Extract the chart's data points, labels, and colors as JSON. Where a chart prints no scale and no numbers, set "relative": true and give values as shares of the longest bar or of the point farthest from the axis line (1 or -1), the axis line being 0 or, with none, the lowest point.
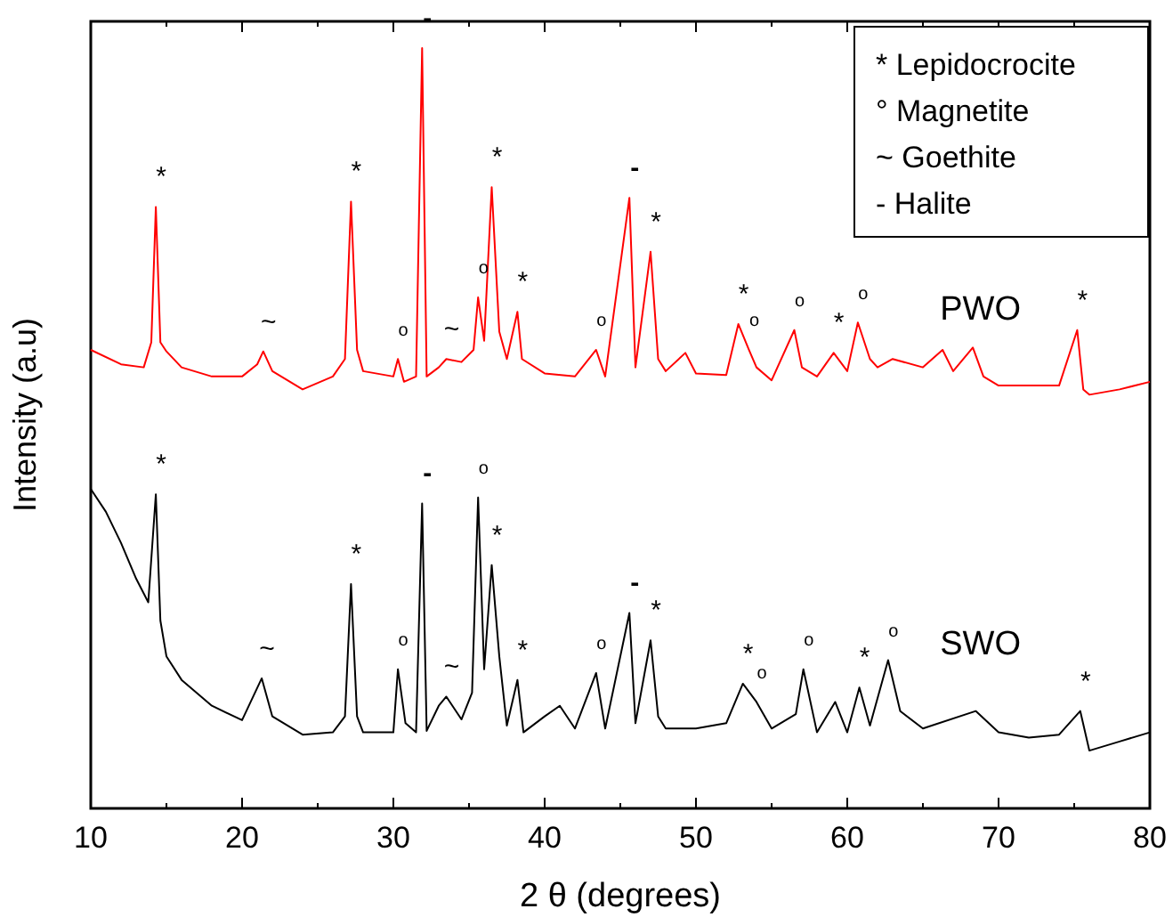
{
  "chart_data": {
    "type": "line",
    "relative": true,
    "xlabel": "2 θ (degrees)",
    "ylabel": "Intensity (a.u)",
    "xlim": [
      10,
      80
    ],
    "xticks": [
      10,
      {
        "value": 15,
        "label": null
      },
      20,
      {
        "value": 25,
        "label": null
      },
      30,
      {
        "value": 35,
        "label": null
      },
      40,
      {
        "value": 45,
        "label": null
      },
      50,
      {
        "value": 55,
        "label": null
      },
      60,
      {
        "value": 65,
        "label": null
      },
      70,
      {
        "value": 75,
        "label": null
      },
      80
    ],
    "grid": false,
    "series": [
      {
        "name": "PWO",
        "color": "#ff0000",
        "x": [
          10,
          12,
          13.5,
          14,
          14.3,
          14.6,
          15,
          16,
          18,
          20,
          21,
          21.4,
          22,
          24,
          26,
          26.8,
          27.2,
          27.6,
          28,
          30,
          30.3,
          30.7,
          31.5,
          31.9,
          32.2,
          33,
          33.5,
          34.5,
          35.3,
          35.6,
          36,
          36.5,
          37,
          37.5,
          38.2,
          38.5,
          40,
          42,
          43.4,
          44,
          45.6,
          46,
          47,
          47.5,
          48,
          49.3,
          50,
          52,
          52.8,
          53.5,
          54,
          55,
          56.5,
          57,
          58,
          59.1,
          60,
          60.7,
          61.5,
          62,
          63,
          65,
          66.3,
          67,
          68.3,
          69,
          70,
          72,
          74,
          75.2,
          75.6,
          76,
          78,
          80
        ],
        "values": [
          0.603,
          0.584,
          0.58,
          0.613,
          0.791,
          0.613,
          0.601,
          0.58,
          0.568,
          0.568,
          0.584,
          0.601,
          0.575,
          0.551,
          0.568,
          0.591,
          0.798,
          0.603,
          0.575,
          0.568,
          0.591,
          0.561,
          0.568,
          1.0,
          0.568,
          0.58,
          0.591,
          0.587,
          0.603,
          0.672,
          0.615,
          0.817,
          0.627,
          0.591,
          0.653,
          0.591,
          0.572,
          0.568,
          0.603,
          0.568,
          0.803,
          0.58,
          0.732,
          0.591,
          0.575,
          0.599,
          0.572,
          0.57,
          0.637,
          0.603,
          0.58,
          0.563,
          0.629,
          0.58,
          0.568,
          0.599,
          0.575,
          0.639,
          0.591,
          0.58,
          0.591,
          0.58,
          0.603,
          0.575,
          0.606,
          0.568,
          0.556,
          0.556,
          0.556,
          0.629,
          0.551,
          0.544,
          0.551,
          0.561
        ]
      },
      {
        "name": "SWO",
        "color": "#000000",
        "x": [
          10,
          11,
          12,
          13,
          13.8,
          14.3,
          14.6,
          15,
          16,
          18,
          20,
          21.3,
          22,
          24,
          26,
          26.8,
          27.2,
          27.6,
          28,
          30,
          30.3,
          30.8,
          31.5,
          31.9,
          32.2,
          33,
          33.5,
          34.5,
          35.2,
          35.6,
          36,
          36.5,
          37,
          37.5,
          38.2,
          38.6,
          40,
          41,
          42,
          43.4,
          44,
          45.6,
          46,
          47,
          47.5,
          48,
          50,
          52,
          53.1,
          54,
          55,
          56.6,
          57.1,
          58,
          59.2,
          60,
          60.8,
          61.5,
          62.7,
          63.5,
          65,
          68.5,
          70,
          72,
          74,
          75.4,
          76,
          78,
          80
        ],
        "values": [
          0.42,
          0.39,
          0.349,
          0.302,
          0.271,
          0.413,
          0.247,
          0.2,
          0.169,
          0.135,
          0.116,
          0.171,
          0.121,
          0.097,
          0.1,
          0.121,
          0.295,
          0.121,
          0.1,
          0.1,
          0.183,
          0.112,
          0.1,
          0.401,
          0.102,
          0.135,
          0.147,
          0.117,
          0.152,
          0.409,
          0.183,
          0.32,
          0.2,
          0.109,
          0.169,
          0.1,
          0.121,
          0.135,
          0.105,
          0.178,
          0.105,
          0.257,
          0.112,
          0.221,
          0.121,
          0.105,
          0.105,
          0.112,
          0.164,
          0.14,
          0.105,
          0.124,
          0.183,
          0.1,
          0.14,
          0.1,
          0.159,
          0.109,
          0.195,
          0.128,
          0.105,
          0.128,
          0.1,
          0.093,
          0.097,
          0.128,
          0.076,
          0.088,
          0.1
        ]
      }
    ],
    "annotations": [
      "* Lepidocrocite",
      "° Magnetite",
      "~ Goethite",
      "- Halite",
      {
        "text": "*",
        "x": 14.3,
        "y": 0.791
      },
      {
        "text": "~",
        "x": 21.4,
        "y": 0.601
      },
      {
        "text": "*",
        "x": 27.2,
        "y": 0.798
      },
      {
        "text": "o",
        "x": 30.3,
        "y": 0.591
      },
      {
        "text": "-",
        "x": 31.9,
        "y": 1.0
      },
      {
        "text": "~",
        "x": 33.5,
        "y": 0.591
      },
      {
        "text": "o",
        "x": 35.6,
        "y": 0.672
      },
      {
        "text": "*",
        "x": 36.5,
        "y": 0.817
      },
      {
        "text": "*",
        "x": 38.2,
        "y": 0.653
      },
      {
        "text": "o",
        "x": 43.4,
        "y": 0.603
      },
      {
        "text": "-",
        "x": 45.6,
        "y": 0.803
      },
      {
        "text": "*",
        "x": 47,
        "y": 0.732
      },
      {
        "text": "*",
        "x": 52.8,
        "y": 0.637
      },
      {
        "text": "o",
        "x": 53.5,
        "y": 0.603
      },
      {
        "text": "o",
        "x": 56.5,
        "y": 0.629
      },
      {
        "text": "*",
        "x": 59.1,
        "y": 0.599
      },
      {
        "text": "o",
        "x": 60.7,
        "y": 0.639
      },
      {
        "text": "*",
        "x": 75.2,
        "y": 0.629
      },
      {
        "text": "*",
        "x": 14.3,
        "y": 0.413
      },
      {
        "text": "~",
        "x": 21.3,
        "y": 0.171
      },
      {
        "text": "*",
        "x": 27.2,
        "y": 0.295
      },
      {
        "text": "o",
        "x": 30.3,
        "y": 0.183
      },
      {
        "text": "-",
        "x": 31.9,
        "y": 0.401
      },
      {
        "text": "~",
        "x": 33.5,
        "y": 0.147
      },
      {
        "text": "o",
        "x": 35.6,
        "y": 0.409
      },
      {
        "text": "*",
        "x": 36.5,
        "y": 0.32
      },
      {
        "text": "*",
        "x": 38.2,
        "y": 0.169
      },
      {
        "text": "o",
        "x": 43.4,
        "y": 0.178
      },
      {
        "text": "-",
        "x": 45.6,
        "y": 0.257
      },
      {
        "text": "*",
        "x": 47,
        "y": 0.221
      },
      {
        "text": "*",
        "x": 53.1,
        "y": 0.164
      },
      {
        "text": "o",
        "x": 54,
        "y": 0.14
      },
      {
        "text": "o",
        "x": 57.1,
        "y": 0.183
      },
      {
        "text": "*",
        "x": 60.8,
        "y": 0.159
      },
      {
        "text": "o",
        "x": 62.7,
        "y": 0.195
      },
      {
        "text": "*",
        "x": 75.4,
        "y": 0.128
      }
    ]
  }
}
